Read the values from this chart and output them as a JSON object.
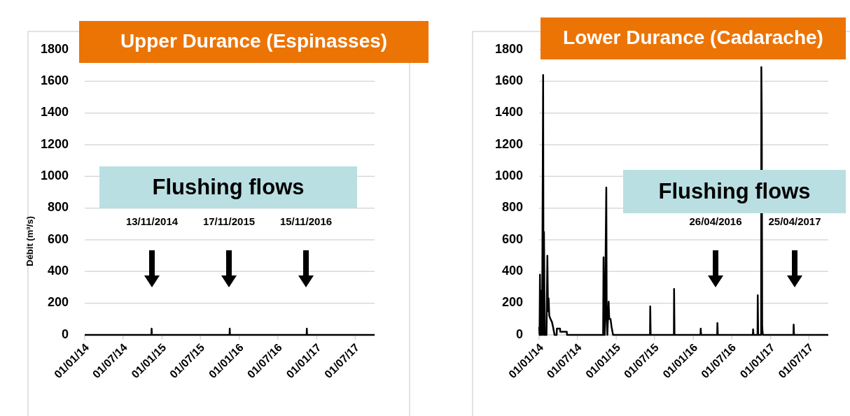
{
  "chart_data": [
    {
      "type": "line",
      "title": "Upper Durance (Espinasses)",
      "ylabel": "Débit (m³/s)",
      "series": [
        {
          "color": "#000000",
          "x": [
            "2014-01-01",
            "2014-11-12",
            "2014-11-13",
            "2014-11-14",
            "2015-11-16",
            "2015-11-17",
            "2015-11-18",
            "2016-11-14",
            "2016-11-15",
            "2016-11-16",
            "2017-10-01"
          ],
          "values": [
            0,
            0,
            40,
            0,
            0,
            40,
            0,
            0,
            40,
            0,
            0
          ]
        }
      ],
      "xlim": [
        "2014-01-01",
        "2017-10-01"
      ],
      "xticks": [
        {
          "value": "2014-01-01",
          "label": "01/01/14"
        },
        {
          "value": "2014-07-01",
          "label": "01/07/14"
        },
        {
          "value": "2015-01-01",
          "label": "01/01/15"
        },
        {
          "value": "2015-07-01",
          "label": "01/07/15"
        },
        {
          "value": "2016-01-01",
          "label": "01/01/16"
        },
        {
          "value": "2016-07-01",
          "label": "01/07/16"
        },
        {
          "value": "2017-01-01",
          "label": "01/01/17"
        },
        {
          "value": "2017-07-01",
          "label": "01/07/17"
        }
      ],
      "ylim": [
        0,
        1800
      ],
      "yticks": [
        0,
        200,
        400,
        600,
        800,
        1000,
        1200,
        1400,
        1600,
        1800
      ],
      "grid": "y",
      "marker": "none",
      "line_style": "solid",
      "annotations": [
        "Flushing flows",
        "13/11/2014",
        "17/11/2015",
        "15/11/2016"
      ]
    },
    {
      "type": "line",
      "title": "Lower Durance (Cadarache)",
      "series": [
        {
          "color": "#000000",
          "x": [
            "2014-01-01",
            "2014-01-03",
            "2014-01-05",
            "2014-01-07",
            "2014-01-09",
            "2014-01-13",
            "2014-01-15",
            "2014-01-20",
            "2014-01-22",
            "2014-01-24",
            "2014-01-26",
            "2014-01-28",
            "2014-02-05",
            "2014-02-09",
            "2014-02-12",
            "2014-02-15",
            "2014-02-18",
            "2014-02-24",
            "2014-03-03",
            "2014-03-08",
            "2014-03-15",
            "2014-03-25",
            "2014-03-26",
            "2014-04-10",
            "2014-04-11",
            "2014-05-12",
            "2014-05-13",
            "2014-10-31",
            "2014-11-02",
            "2014-11-04",
            "2014-11-06",
            "2014-11-08",
            "2014-11-15",
            "2014-11-17",
            "2014-11-20",
            "2014-11-26",
            "2014-11-29",
            "2014-12-05",
            "2014-12-10",
            "2014-12-17",
            "2015-06-10",
            "2015-06-11",
            "2015-06-13",
            "2015-10-01",
            "2015-10-02",
            "2015-10-04",
            "2016-02-04",
            "2016-02-05",
            "2016-02-07",
            "2016-04-23",
            "2016-04-24",
            "2016-04-26",
            "2016-10-09",
            "2016-10-10",
            "2016-10-12",
            "2016-10-31",
            "2016-11-01",
            "2016-11-03",
            "2016-11-17",
            "2016-11-18",
            "2016-11-20",
            "2016-11-22",
            "2016-11-25",
            "2017-04-19",
            "2017-04-20",
            "2017-04-22",
            "2017-10-01"
          ],
          "values": [
            50,
            0,
            380,
            120,
            0,
            280,
            0,
            1640,
            0,
            650,
            280,
            0,
            0,
            500,
            150,
            230,
            120,
            100,
            80,
            50,
            0,
            0,
            40,
            40,
            20,
            20,
            0,
            0,
            490,
            0,
            200,
            0,
            930,
            100,
            0,
            210,
            100,
            100,
            50,
            0,
            0,
            180,
            0,
            0,
            290,
            0,
            0,
            40,
            0,
            0,
            75,
            0,
            0,
            35,
            0,
            0,
            250,
            0,
            0,
            1690,
            1380,
            50,
            0,
            0,
            65,
            0,
            0
          ]
        }
      ],
      "xlim": [
        "2014-01-01",
        "2017-10-01"
      ],
      "xticks": [
        {
          "value": "2014-01-01",
          "label": "01/01/14"
        },
        {
          "value": "2014-07-01",
          "label": "01/07/14"
        },
        {
          "value": "2015-01-01",
          "label": "01/01/15"
        },
        {
          "value": "2015-07-01",
          "label": "01/07/15"
        },
        {
          "value": "2016-01-01",
          "label": "01/01/16"
        },
        {
          "value": "2016-07-01",
          "label": "01/07/16"
        },
        {
          "value": "2017-01-01",
          "label": "01/01/17"
        },
        {
          "value": "2017-07-01",
          "label": "01/07/17"
        }
      ],
      "ylim": [
        0,
        1800
      ],
      "yticks": [
        0,
        200,
        400,
        600,
        800,
        1000,
        1200,
        1400,
        1600,
        1800
      ],
      "grid": "y",
      "marker": "none",
      "line_style": "solid",
      "annotations": [
        "Flushing flows",
        "26/04/2016",
        "25/04/2017"
      ]
    }
  ]
}
